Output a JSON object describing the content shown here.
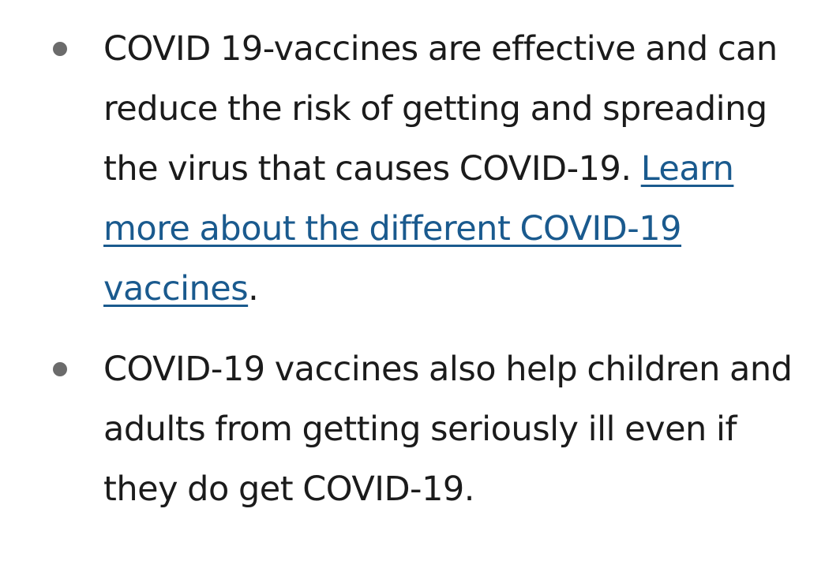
{
  "list": {
    "items": [
      {
        "text": "COVID 19-vaccines are effective and can reduce the risk of getting and spreading the virus that causes COVID-19. ",
        "link_text": "Learn more about the different COVID-19 vaccines",
        "suffix": "."
      },
      {
        "text": "COVID-19 vaccines also help children and adults from getting seriously ill even if they do get COVID-19."
      }
    ]
  },
  "colors": {
    "text": "#1b1b1b",
    "link": "#1a5a8e",
    "bullet": "#6b6b6b",
    "background": "#ffffff"
  }
}
